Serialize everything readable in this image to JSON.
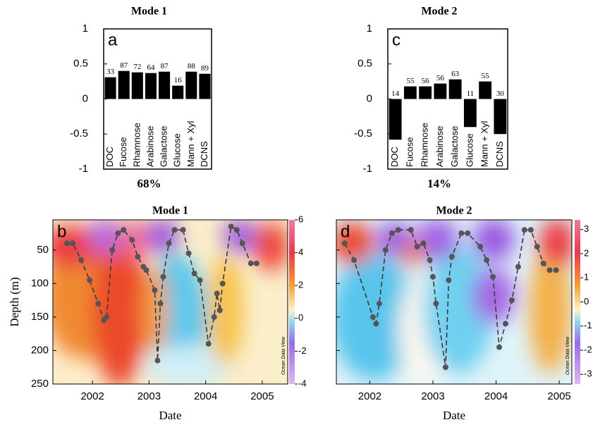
{
  "chart_data": [
    {
      "type": "bar",
      "title": "Mode 1",
      "panel_label": "a",
      "footer": "68%",
      "categories": [
        "DOC",
        "Fucose",
        "Rhamnose",
        "Arabinose",
        "Galactose",
        "Glucose",
        "Mann + Xyl",
        "DCNS"
      ],
      "values": [
        0.31,
        0.4,
        0.38,
        0.37,
        0.39,
        0.19,
        0.39,
        0.36
      ],
      "bar_annotations": [
        "33",
        "87",
        "72",
        "64",
        "87",
        "16",
        "88",
        "89"
      ],
      "color": "#000000",
      "ylim": [
        -1,
        1
      ],
      "yticks": [
        -1,
        -0.5,
        0,
        0.5,
        1
      ]
    },
    {
      "type": "bar",
      "title": "Mode 2",
      "panel_label": "c",
      "footer": "14%",
      "categories": [
        "DOC",
        "Fucose",
        "Rhamnose",
        "Arabinose",
        "Galactose",
        "Glucose",
        "Mann + Xyl",
        "DCNS"
      ],
      "values": [
        -0.58,
        0.18,
        0.18,
        0.22,
        0.28,
        -0.4,
        0.25,
        -0.5
      ],
      "bar_annotations": [
        "14",
        "55",
        "56",
        "56",
        "63",
        "11",
        "55",
        "30"
      ],
      "color": "#000000",
      "ylim": [
        -1,
        1
      ],
      "yticks": [
        -1,
        -0.5,
        0,
        0.5,
        1
      ]
    },
    {
      "type": "contour",
      "title": "Mode 1",
      "panel_label": "b",
      "xlabel": "Date",
      "ylabel": "Depth (m)",
      "watermark": "Ocean Data View",
      "xlim": [
        2001.3,
        2005.45
      ],
      "xticks": [
        2002,
        2003,
        2004,
        2005
      ],
      "ylim": [
        5,
        250
      ],
      "y_inverted": true,
      "yticks": [
        50,
        100,
        150,
        200,
        250
      ],
      "clim": [
        -4,
        6
      ],
      "cticks": [
        -4,
        -2,
        0,
        2,
        4,
        6
      ],
      "line_color": "#3a3a3a",
      "x": [
        2001.55,
        2001.65,
        2001.8,
        2001.95,
        2002.1,
        2002.2,
        2002.25,
        2002.35,
        2002.45,
        2002.55,
        2002.7,
        2002.8,
        2002.9,
        2002.95,
        2003.1,
        2003.15,
        2003.2,
        2003.25,
        2003.35,
        2003.45,
        2003.6,
        2003.7,
        2003.8,
        2003.9,
        2004.05,
        2004.15,
        2004.2,
        2004.25,
        2004.3,
        2004.45,
        2004.55,
        2004.65,
        2004.8,
        2004.9
      ],
      "values": [
        40,
        40,
        65,
        95,
        130,
        155,
        150,
        50,
        25,
        20,
        35,
        60,
        75,
        80,
        110,
        215,
        130,
        90,
        40,
        20,
        20,
        55,
        85,
        95,
        190,
        150,
        115,
        140,
        100,
        15,
        20,
        40,
        70,
        70
      ]
    },
    {
      "type": "contour",
      "title": "Mode 2",
      "panel_label": "d",
      "xlabel": "Date",
      "watermark": "Ocean Data View",
      "xlim": [
        2001.47,
        2005.2
      ],
      "xticks": [
        2002,
        2003,
        2004,
        2005
      ],
      "ylim": [
        5,
        250
      ],
      "y_inverted": true,
      "yticks": [
        50,
        100,
        150,
        200,
        250
      ],
      "clim": [
        -3.4,
        3.4
      ],
      "cticks": [
        -3,
        -2,
        -1,
        0,
        1,
        2,
        3
      ],
      "line_color": "#3a3a3a",
      "x": [
        2001.6,
        2001.75,
        2002.05,
        2002.1,
        2002.15,
        2002.25,
        2002.35,
        2002.45,
        2002.65,
        2002.75,
        2002.85,
        2002.95,
        2003.0,
        2003.05,
        2003.2,
        2003.25,
        2003.3,
        2003.45,
        2003.55,
        2003.75,
        2003.85,
        2003.95,
        2004.05,
        2004.15,
        2004.25,
        2004.35,
        2004.45,
        2004.55,
        2004.65,
        2004.75,
        2004.85,
        2004.95
      ],
      "values": [
        40,
        65,
        150,
        160,
        130,
        50,
        25,
        20,
        20,
        45,
        40,
        65,
        90,
        130,
        225,
        95,
        60,
        25,
        25,
        45,
        65,
        90,
        195,
        160,
        125,
        75,
        20,
        20,
        45,
        70,
        80,
        80
      ]
    }
  ]
}
